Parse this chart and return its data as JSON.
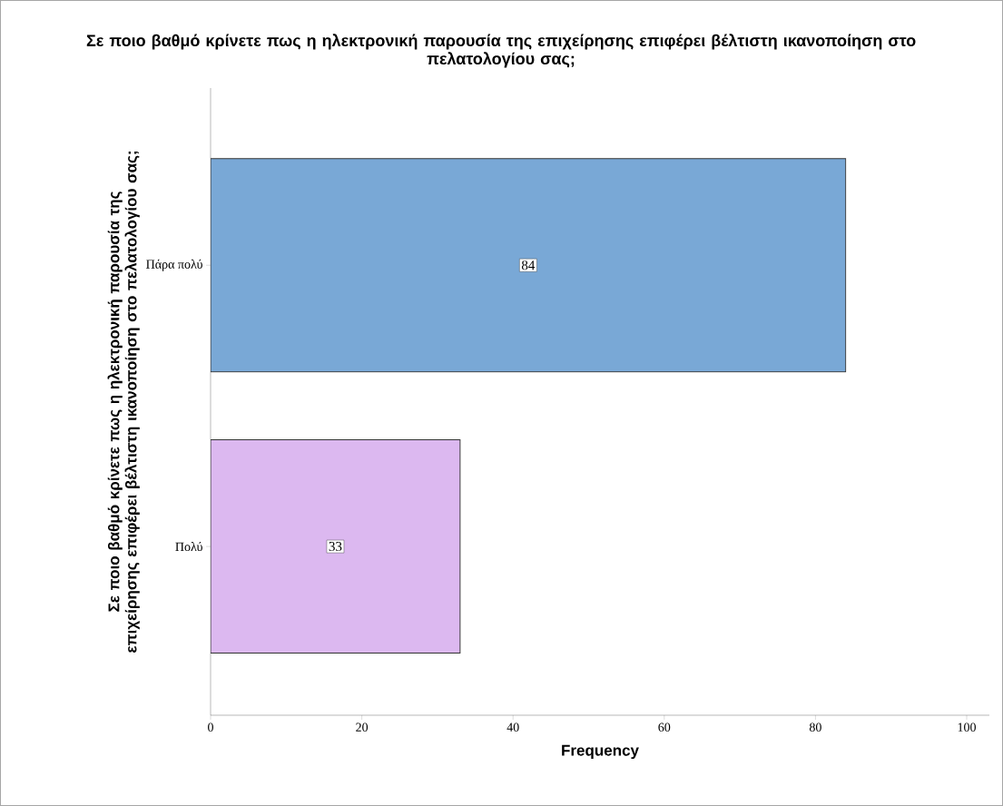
{
  "chart_data": {
    "type": "bar",
    "orientation": "horizontal",
    "title": "Σε ποιο βαθμό κρίνετε πως η ηλεκτρονική παρουσία της επιχείρησης επιφέρει βέλτιστη ικανοποίηση στο πελατολογίου σας;",
    "ylabel": "Σε ποιο βαθμό κρίνετε πως η ηλεκτρονική παρουσία της επιχείρησης επιφέρει βέλτιστη ικανοποίηση στο πελατολογίου σας;",
    "xlabel": "Frequency",
    "categories": [
      "Πάρα πολύ",
      "Πολύ"
    ],
    "values": [
      84,
      33
    ],
    "colors": [
      "#79a8d6",
      "#dcb8f0"
    ],
    "data_labels": true,
    "xlim": [
      0,
      103
    ],
    "xticks": [
      0,
      20,
      40,
      60,
      80,
      100
    ],
    "grid": false
  }
}
